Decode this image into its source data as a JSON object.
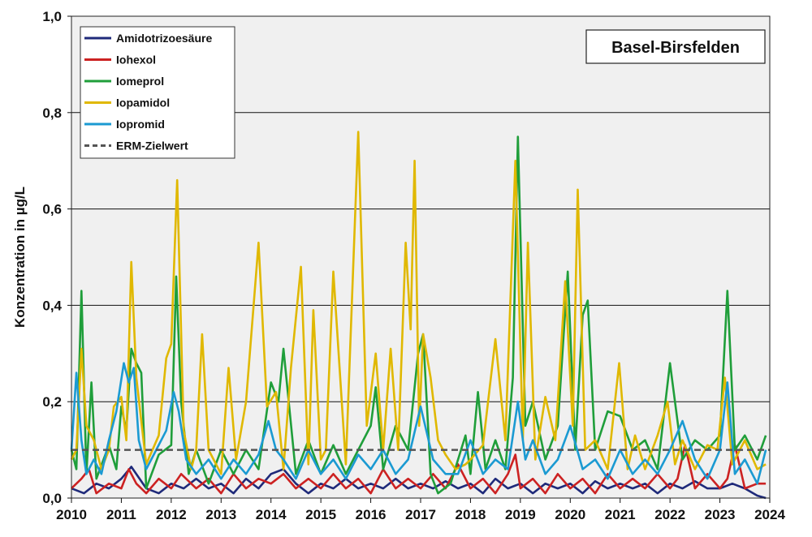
{
  "chart_data": {
    "type": "line",
    "title": "Basel-Birsfelden",
    "ylabel": "Konzentration in µg/L",
    "xlabel": "",
    "xlim": [
      2010,
      2024
    ],
    "ylim": [
      0,
      1.0
    ],
    "x_ticks": [
      "2010",
      "2011",
      "2012",
      "2013",
      "2014",
      "2015",
      "2016",
      "2017",
      "2018",
      "2019",
      "2020",
      "2021",
      "2022",
      "2023",
      "2024"
    ],
    "y_ticks": [
      "0,0",
      "0,2",
      "0,4",
      "0,6",
      "0,8",
      "1,0"
    ],
    "y_tick_values": [
      0,
      0.2,
      0.4,
      0.6,
      0.8,
      1.0
    ],
    "grid": "horizontal",
    "legend_position": "top-left",
    "threshold": {
      "name": "ERM-Zielwert",
      "value": 0.1,
      "color": "#555555"
    },
    "series": [
      {
        "name": "Amidotrizoesäure",
        "color": "#1f2a7a",
        "x": [
          2010.0,
          2010.25,
          2010.5,
          2010.75,
          2011.0,
          2011.2,
          2011.5,
          2011.75,
          2012.0,
          2012.25,
          2012.5,
          2012.75,
          2013.0,
          2013.25,
          2013.5,
          2013.75,
          2014.0,
          2014.25,
          2014.5,
          2014.75,
          2015.0,
          2015.25,
          2015.5,
          2015.75,
          2016.0,
          2016.25,
          2016.5,
          2016.75,
          2017.0,
          2017.25,
          2017.5,
          2017.75,
          2018.0,
          2018.25,
          2018.5,
          2018.75,
          2019.0,
          2019.25,
          2019.5,
          2019.75,
          2020.0,
          2020.25,
          2020.5,
          2020.75,
          2021.0,
          2021.25,
          2021.5,
          2021.75,
          2022.0,
          2022.25,
          2022.5,
          2022.75,
          2023.0,
          2023.25,
          2023.5,
          2023.75,
          2023.92
        ],
        "y": [
          0.02,
          0.01,
          0.03,
          0.02,
          0.04,
          0.065,
          0.02,
          0.01,
          0.03,
          0.02,
          0.04,
          0.02,
          0.03,
          0.01,
          0.04,
          0.02,
          0.05,
          0.06,
          0.03,
          0.01,
          0.03,
          0.02,
          0.04,
          0.02,
          0.03,
          0.02,
          0.04,
          0.02,
          0.03,
          0.02,
          0.035,
          0.02,
          0.03,
          0.01,
          0.04,
          0.02,
          0.03,
          0.01,
          0.03,
          0.02,
          0.03,
          0.01,
          0.035,
          0.02,
          0.03,
          0.02,
          0.03,
          0.01,
          0.03,
          0.02,
          0.035,
          0.02,
          0.02,
          0.03,
          0.02,
          0.005,
          0.0
        ]
      },
      {
        "name": "Iohexol",
        "color": "#cc2222",
        "x": [
          2010.0,
          2010.2,
          2010.35,
          2010.5,
          2010.75,
          2011.0,
          2011.15,
          2011.3,
          2011.5,
          2011.75,
          2012.0,
          2012.2,
          2012.5,
          2012.75,
          2013.0,
          2013.25,
          2013.5,
          2013.75,
          2014.0,
          2014.25,
          2014.5,
          2014.75,
          2015.0,
          2015.25,
          2015.5,
          2015.75,
          2016.0,
          2016.25,
          2016.5,
          2016.75,
          2017.0,
          2017.25,
          2017.5,
          2017.75,
          2018.0,
          2018.25,
          2018.5,
          2018.75,
          2018.9,
          2019.0,
          2019.25,
          2019.5,
          2019.75,
          2020.0,
          2020.25,
          2020.5,
          2020.75,
          2021.0,
          2021.25,
          2021.5,
          2021.75,
          2022.0,
          2022.15,
          2022.3,
          2022.5,
          2022.75,
          2023.0,
          2023.15,
          2023.3,
          2023.5,
          2023.75,
          2023.92
        ],
        "y": [
          0.02,
          0.04,
          0.06,
          0.01,
          0.03,
          0.02,
          0.06,
          0.03,
          0.01,
          0.04,
          0.02,
          0.05,
          0.02,
          0.04,
          0.01,
          0.05,
          0.02,
          0.04,
          0.03,
          0.05,
          0.02,
          0.04,
          0.02,
          0.05,
          0.02,
          0.04,
          0.01,
          0.06,
          0.02,
          0.04,
          0.02,
          0.05,
          0.02,
          0.07,
          0.02,
          0.04,
          0.01,
          0.05,
          0.09,
          0.02,
          0.04,
          0.01,
          0.05,
          0.02,
          0.04,
          0.01,
          0.05,
          0.02,
          0.04,
          0.02,
          0.05,
          0.02,
          0.04,
          0.11,
          0.02,
          0.05,
          0.02,
          0.04,
          0.11,
          0.02,
          0.03,
          0.03
        ]
      },
      {
        "name": "Iomeprol",
        "color": "#1f9e3a",
        "x": [
          2010.0,
          2010.1,
          2010.2,
          2010.3,
          2010.4,
          2010.5,
          2010.75,
          2010.9,
          2011.0,
          2011.1,
          2011.2,
          2011.3,
          2011.4,
          2011.5,
          2011.75,
          2012.0,
          2012.1,
          2012.2,
          2012.35,
          2012.5,
          2012.75,
          2013.0,
          2013.25,
          2013.5,
          2013.75,
          2014.0,
          2014.15,
          2014.25,
          2014.5,
          2014.75,
          2015.0,
          2015.25,
          2015.5,
          2015.75,
          2016.0,
          2016.1,
          2016.25,
          2016.5,
          2016.75,
          2016.95,
          2017.05,
          2017.2,
          2017.35,
          2017.6,
          2017.9,
          2018.0,
          2018.15,
          2018.3,
          2018.5,
          2018.7,
          2018.85,
          2018.95,
          2019.1,
          2019.25,
          2019.5,
          2019.75,
          2019.95,
          2020.1,
          2020.25,
          2020.35,
          2020.5,
          2020.75,
          2021.0,
          2021.25,
          2021.5,
          2021.75,
          2022.0,
          2022.25,
          2022.5,
          2022.75,
          2023.0,
          2023.15,
          2023.3,
          2023.5,
          2023.75,
          2023.92
        ],
        "y": [
          0.1,
          0.06,
          0.43,
          0.05,
          0.24,
          0.04,
          0.11,
          0.06,
          0.19,
          0.14,
          0.31,
          0.28,
          0.26,
          0.02,
          0.09,
          0.11,
          0.46,
          0.2,
          0.05,
          0.1,
          0.03,
          0.1,
          0.05,
          0.1,
          0.06,
          0.24,
          0.2,
          0.31,
          0.05,
          0.12,
          0.05,
          0.11,
          0.05,
          0.1,
          0.15,
          0.23,
          0.06,
          0.15,
          0.1,
          0.3,
          0.34,
          0.05,
          0.01,
          0.03,
          0.13,
          0.05,
          0.22,
          0.06,
          0.12,
          0.06,
          0.25,
          0.75,
          0.15,
          0.2,
          0.08,
          0.15,
          0.47,
          0.1,
          0.38,
          0.41,
          0.1,
          0.18,
          0.17,
          0.1,
          0.12,
          0.06,
          0.28,
          0.08,
          0.12,
          0.1,
          0.13,
          0.43,
          0.1,
          0.13,
          0.08,
          0.13
        ]
      },
      {
        "name": "Iopamidol",
        "color": "#e0b800",
        "x": [
          2010.0,
          2010.1,
          2010.2,
          2010.3,
          2010.45,
          2010.6,
          2010.75,
          2010.85,
          2011.0,
          2011.1,
          2011.2,
          2011.3,
          2011.5,
          2011.75,
          2011.9,
          2012.0,
          2012.12,
          2012.25,
          2012.4,
          2012.5,
          2012.62,
          2012.75,
          2013.0,
          2013.15,
          2013.3,
          2013.5,
          2013.75,
          2013.92,
          2014.1,
          2014.25,
          2014.4,
          2014.6,
          2014.75,
          2014.85,
          2015.0,
          2015.1,
          2015.25,
          2015.5,
          2015.75,
          2015.92,
          2016.1,
          2016.25,
          2016.4,
          2016.55,
          2016.7,
          2016.8,
          2016.88,
          2016.97,
          2017.05,
          2017.2,
          2017.35,
          2017.5,
          2017.7,
          2017.9,
          2018.0,
          2018.25,
          2018.5,
          2018.7,
          2018.9,
          2019.05,
          2019.15,
          2019.3,
          2019.5,
          2019.7,
          2019.9,
          2020.05,
          2020.15,
          2020.3,
          2020.5,
          2020.75,
          2020.98,
          2021.15,
          2021.3,
          2021.5,
          2021.75,
          2021.95,
          2022.1,
          2022.25,
          2022.5,
          2022.75,
          2022.95,
          2023.1,
          2023.25,
          2023.5,
          2023.75,
          2023.92
        ],
        "y": [
          0.08,
          0.1,
          0.31,
          0.15,
          0.12,
          0.06,
          0.1,
          0.19,
          0.21,
          0.12,
          0.49,
          0.25,
          0.07,
          0.13,
          0.29,
          0.32,
          0.66,
          0.14,
          0.06,
          0.1,
          0.34,
          0.1,
          0.05,
          0.27,
          0.08,
          0.2,
          0.53,
          0.19,
          0.22,
          0.06,
          0.27,
          0.48,
          0.07,
          0.39,
          0.08,
          0.1,
          0.47,
          0.07,
          0.76,
          0.15,
          0.3,
          0.1,
          0.31,
          0.1,
          0.53,
          0.35,
          0.7,
          0.15,
          0.34,
          0.25,
          0.12,
          0.09,
          0.06,
          0.07,
          0.08,
          0.11,
          0.33,
          0.12,
          0.7,
          0.12,
          0.53,
          0.08,
          0.21,
          0.12,
          0.45,
          0.15,
          0.64,
          0.1,
          0.12,
          0.06,
          0.28,
          0.06,
          0.13,
          0.06,
          0.13,
          0.2,
          0.07,
          0.12,
          0.06,
          0.11,
          0.1,
          0.25,
          0.07,
          0.12,
          0.06,
          0.07
        ]
      },
      {
        "name": "Iopromid",
        "color": "#1b9ad2",
        "x": [
          2010.0,
          2010.1,
          2010.2,
          2010.3,
          2010.45,
          2010.6,
          2010.75,
          2010.9,
          2011.05,
          2011.15,
          2011.25,
          2011.35,
          2011.5,
          2011.7,
          2011.9,
          2012.05,
          2012.15,
          2012.3,
          2012.5,
          2012.75,
          2013.0,
          2013.25,
          2013.5,
          2013.75,
          2013.95,
          2014.1,
          2014.25,
          2014.5,
          2014.75,
          2015.0,
          2015.25,
          2015.5,
          2015.75,
          2016.0,
          2016.25,
          2016.5,
          2016.75,
          2017.0,
          2017.25,
          2017.5,
          2017.75,
          2018.0,
          2018.25,
          2018.5,
          2018.75,
          2018.95,
          2019.1,
          2019.25,
          2019.5,
          2019.75,
          2020.0,
          2020.25,
          2020.5,
          2020.75,
          2021.0,
          2021.25,
          2021.5,
          2021.75,
          2022.0,
          2022.25,
          2022.5,
          2022.75,
          2023.0,
          2023.15,
          2023.3,
          2023.5,
          2023.75,
          2023.92
        ],
        "y": [
          0.1,
          0.26,
          0.12,
          0.05,
          0.08,
          0.05,
          0.12,
          0.18,
          0.28,
          0.24,
          0.27,
          0.12,
          0.06,
          0.1,
          0.14,
          0.22,
          0.18,
          0.08,
          0.05,
          0.08,
          0.04,
          0.08,
          0.05,
          0.09,
          0.16,
          0.1,
          0.08,
          0.04,
          0.1,
          0.05,
          0.08,
          0.04,
          0.09,
          0.06,
          0.1,
          0.05,
          0.08,
          0.19,
          0.08,
          0.05,
          0.05,
          0.12,
          0.05,
          0.08,
          0.06,
          0.2,
          0.08,
          0.12,
          0.05,
          0.08,
          0.15,
          0.06,
          0.08,
          0.04,
          0.1,
          0.05,
          0.08,
          0.05,
          0.1,
          0.16,
          0.08,
          0.04,
          0.1,
          0.24,
          0.05,
          0.08,
          0.03,
          0.1
        ]
      }
    ]
  }
}
